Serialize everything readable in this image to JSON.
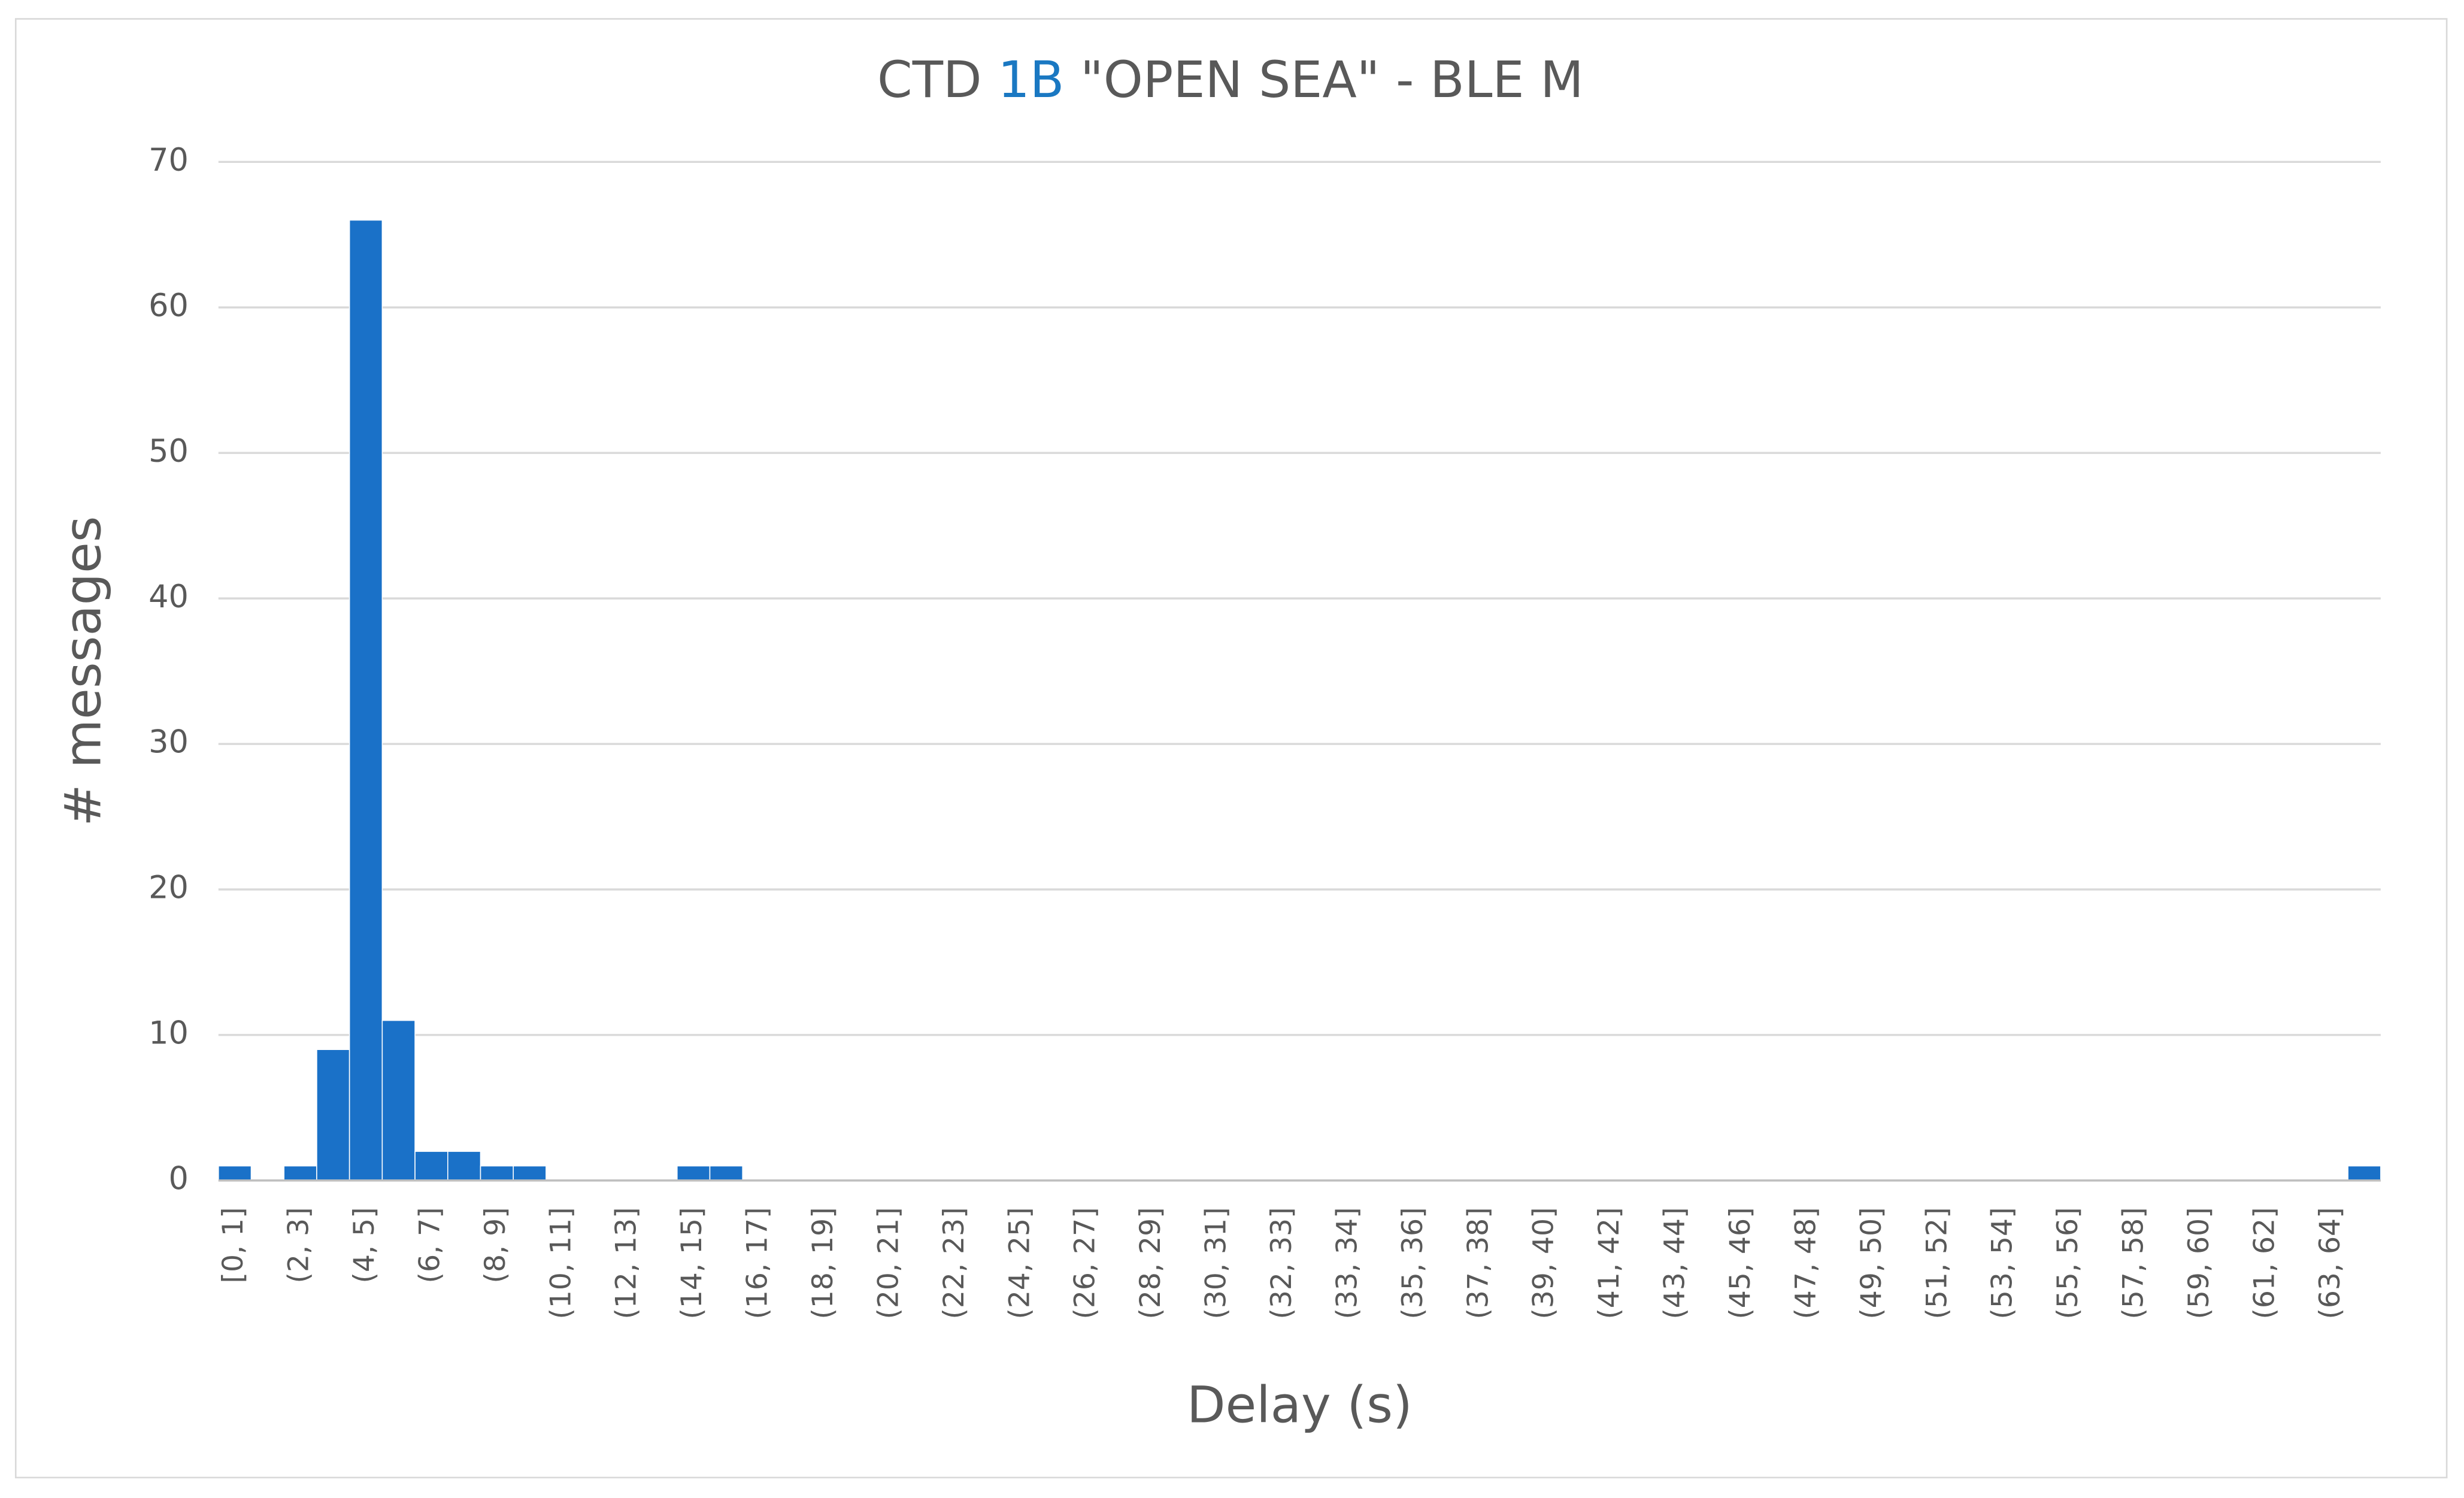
{
  "chart_data": {
    "type": "bar",
    "title": "CTD",
    "title_highlight": "1B",
    "title_rest": "\"OPEN SEA\" - BLE M",
    "x_label": "Delay (s)",
    "y_label": "# messages",
    "categories": [
      "[0, 1]",
      null,
      "(2, 3]",
      null,
      "(4, 5]",
      null,
      "(6, 7]",
      null,
      "(8, 9]",
      null,
      "(10, 11]",
      null,
      "(12, 13]",
      null,
      "(14, 15]",
      null,
      "(16, 17]",
      null,
      "(18, 19]",
      null,
      "(20, 21]",
      null,
      "(22, 23]",
      null,
      "(24, 25]",
      null,
      "(26, 27]",
      null,
      "(28, 29]",
      null,
      "(30, 31]",
      null,
      "(32, 33]",
      null,
      "(33, 34]",
      null,
      "(35, 36]",
      null,
      "(37, 38]",
      null,
      "(39, 40]",
      null,
      "(41, 42]",
      null,
      "(43, 44]",
      null,
      "(45, 46]",
      null,
      "(47, 48]",
      null,
      "(49, 50]",
      null,
      "(51, 52]",
      null,
      "(53, 54]",
      null,
      "(55, 56]",
      null,
      "(57, 58]",
      null,
      "(59, 60]",
      null,
      "(61, 62]",
      null,
      "(63, 64]",
      null
    ],
    "values": [
      1,
      0,
      1,
      9,
      66,
      11,
      2,
      2,
      1,
      1,
      0,
      0,
      0,
      0,
      1,
      1,
      0,
      0,
      0,
      0,
      0,
      0,
      0,
      0,
      0,
      0,
      0,
      0,
      0,
      0,
      0,
      0,
      0,
      0,
      0,
      0,
      0,
      0,
      0,
      0,
      0,
      0,
      0,
      0,
      0,
      0,
      0,
      0,
      0,
      0,
      0,
      0,
      0,
      0,
      0,
      0,
      0,
      0,
      0,
      0,
      0,
      0,
      0,
      0,
      0,
      1
    ],
    "color": "#1a71c8",
    "title_highlight_color": "#1a78c2",
    "ylim": [
      0,
      70
    ],
    "yticks": [
      0,
      10,
      20,
      30,
      40,
      50,
      60,
      70
    ],
    "grid": true
  }
}
